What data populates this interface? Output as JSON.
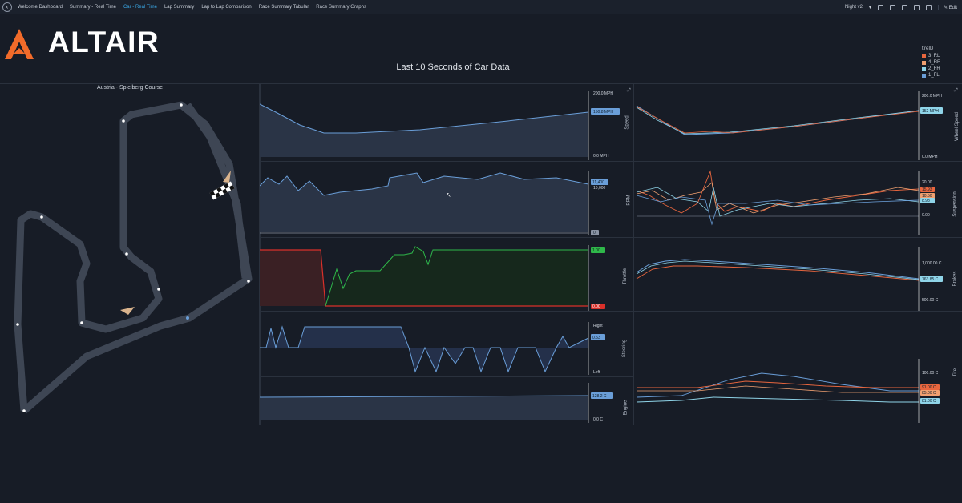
{
  "nav": {
    "back_icon": "back-arrow-icon",
    "tabs": [
      {
        "label": "Welcome Dashboard",
        "active": false
      },
      {
        "label": "Summary - Real Time",
        "active": false
      },
      {
        "label": "Car - Real Time",
        "active": true
      },
      {
        "label": "Lap Summary",
        "active": false
      },
      {
        "label": "Lap to Lap Comparison",
        "active": false
      },
      {
        "label": "Race Summary Tabular",
        "active": false
      },
      {
        "label": "Race Summary Graphs",
        "active": false
      }
    ],
    "theme": "Night v2",
    "edit_label": "Edit",
    "accent": "#3aa8e6"
  },
  "brand": {
    "name": "ALTAIR",
    "logo_color": "#f26b2a"
  },
  "title": "Last 10 Seconds of Car Data",
  "legend": {
    "title": "tireID",
    "items": [
      {
        "label": "3_RL",
        "color": "#e8663e"
      },
      {
        "label": "4_RR",
        "color": "#f0a070"
      },
      {
        "label": "2_FR",
        "color": "#8fd4e8"
      },
      {
        "label": "1_FL",
        "color": "#6a9ed8"
      }
    ]
  },
  "track": {
    "title": "Austria - Spielberg Course"
  },
  "left_charts": {
    "speed": {
      "top": "200.0 MPH",
      "bottom": "0.0 MPH",
      "current": "150.8 MPH"
    },
    "rpm": {
      "top": "10,000",
      "current": "11,400",
      "bottom": "0"
    },
    "throttle": {
      "top": "1.00",
      "bottom": "0.00"
    },
    "steering": {
      "top": "Right",
      "bottom": "Left",
      "current": "0.53"
    },
    "engine": {
      "current": "128.2 C",
      "bottom": "0.0 C"
    }
  },
  "left_side_labels": {
    "speed": "Speed",
    "rpm": "RPM",
    "throttle": "Throttle",
    "steering": "Steering",
    "engine": "Engine"
  },
  "right_charts": {
    "wheel_speed": {
      "top": "200.0 MPH",
      "bottom": "0.0 MPH",
      "current": "152 MPH",
      "label": "Wheel Speed"
    },
    "suspension": {
      "top": "20.00",
      "bottom": "0.00",
      "v1": "15.93",
      "v2": "10.50",
      "v3": "8.98",
      "label": "Suspension"
    },
    "brakes": {
      "top": "1,000.00 C",
      "bottom": "500.00 C",
      "current": "763.85 C",
      "label": "Brakes"
    },
    "tires": {
      "top": "100.00 C",
      "v1": "91.00 C",
      "v2": "85.00 C",
      "v3": "81.00 C",
      "label": "Tire"
    }
  },
  "colors": {
    "blue": "#6a9ed8",
    "green": "#2fb84a",
    "red": "#d9302a",
    "orange": "#e8663e",
    "cyan": "#8fd4e8"
  }
}
